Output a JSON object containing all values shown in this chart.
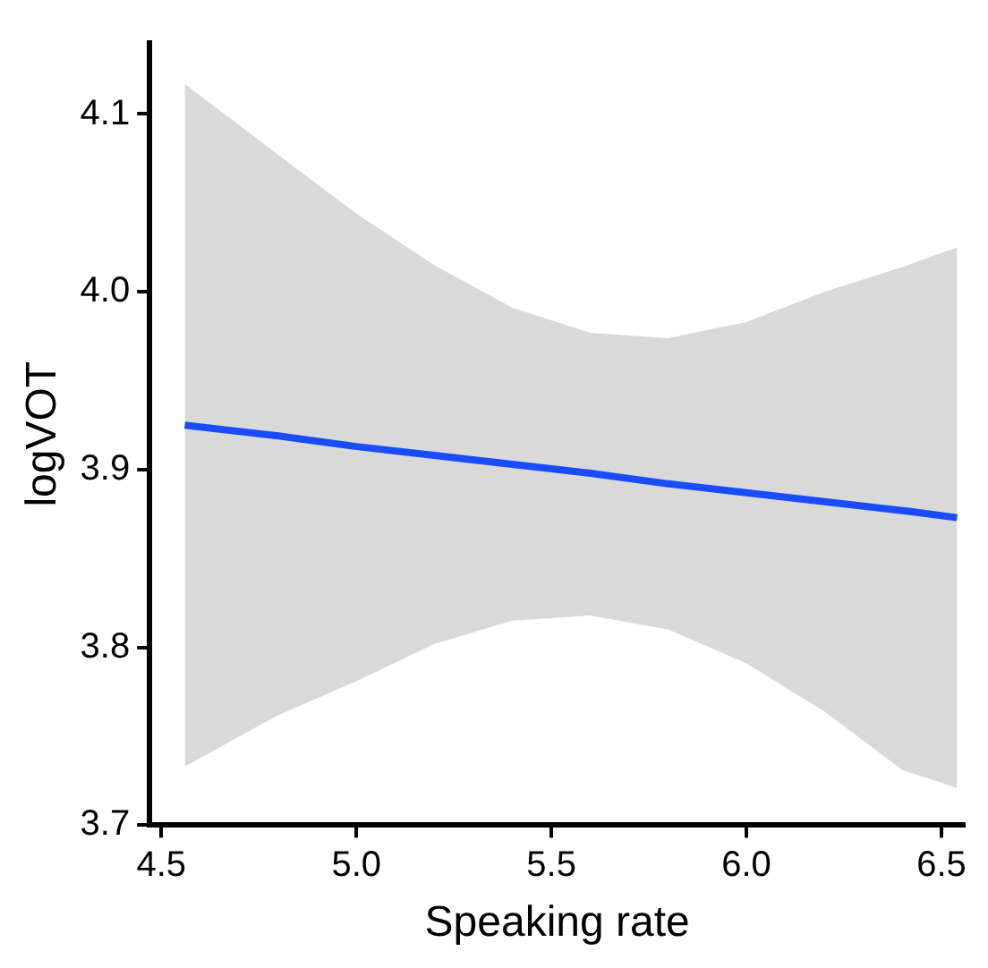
{
  "chart_data": {
    "type": "line",
    "xlabel": "Speaking rate",
    "ylabel": "logVOT",
    "xlim": [
      4.47,
      6.56
    ],
    "ylim": [
      3.7,
      4.14
    ],
    "xticks": [
      {
        "value": 4.5,
        "label": "4.5"
      },
      {
        "value": 5,
        "label": "5.0"
      },
      {
        "value": 5.5,
        "label": "5.5"
      },
      {
        "value": 6,
        "label": "6.0"
      },
      {
        "value": 6.5,
        "label": "6.5"
      }
    ],
    "yticks": [
      {
        "value": 3.7,
        "label": "3.7"
      },
      {
        "value": 3.8,
        "label": "3.8"
      },
      {
        "value": 3.9,
        "label": "3.9"
      },
      {
        "value": 4,
        "label": "4.0"
      },
      {
        "value": 4.1,
        "label": "4.1"
      }
    ],
    "grid": false,
    "legend": false,
    "marker": "none",
    "line_style": "solid",
    "x": [
      4.56,
      4.8,
      5.0,
      5.2,
      5.4,
      5.6,
      5.8,
      6.0,
      6.2,
      6.4,
      6.54
    ],
    "series": [
      {
        "color": "#1a4cff",
        "values": [
          3.925,
          3.919,
          3.913,
          3.908,
          3.903,
          3.898,
          3.892,
          3.887,
          3.882,
          3.877,
          3.873
        ],
        "upper": [
          4.117,
          4.077,
          4.044,
          4.015,
          3.991,
          3.977,
          3.974,
          3.983,
          4.0,
          4.014,
          4.025
        ],
        "lower": [
          3.733,
          3.762,
          3.781,
          3.802,
          3.815,
          3.818,
          3.81,
          3.791,
          3.764,
          3.731,
          3.721
        ]
      }
    ]
  }
}
